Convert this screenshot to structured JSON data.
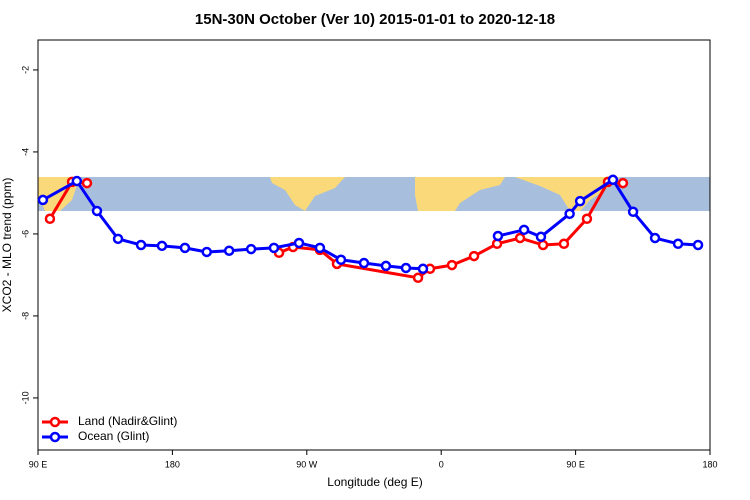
{
  "chart_data": {
    "type": "line",
    "title": "15N-30N October (Ver 10)   2015-01-01 to 2020-12-18",
    "x_label": "Longitude (deg E)",
    "y_label": "XCO2 - MLO trend (ppm)",
    "xlim": [
      90,
      540
    ],
    "ylim": [
      -11.27,
      -1.27
    ],
    "xticks": [
      {
        "value": 90,
        "label": "90 E"
      },
      {
        "value": 180,
        "label": "180"
      },
      {
        "value": 270,
        "label": "90 W"
      },
      {
        "value": 360,
        "label": "0"
      },
      {
        "value": 450,
        "label": "90 E"
      },
      {
        "value": 540,
        "label": "180"
      }
    ],
    "yticks": [
      -10,
      -8,
      -6,
      -4,
      -2
    ],
    "legend": "bottom-left",
    "series": [
      {
        "name": "Land (Nadir&Glint)",
        "color": "#ff0000",
        "x": [
          98,
          112.8,
          122.8,
          190,
          251.4,
          260.8,
          278.8,
          290.2,
          344.5,
          352.5,
          367.2,
          382,
          397.4,
          412.8,
          428.2,
          442.2,
          457.6,
          471.7,
          481.7
        ],
        "values": [
          -5.63,
          -4.73,
          -4.76,
          null,
          -6.46,
          -6.32,
          -6.39,
          -6.73,
          -7.07,
          -6.85,
          -6.76,
          -6.54,
          -6.24,
          -6.1,
          -6.27,
          -6.24,
          -5.63,
          -4.73,
          -4.76
        ]
      },
      {
        "name": "Ocean (Glint)",
        "color": "#0000ff",
        "x": [
          93.3,
          116,
          129.5,
          143.6,
          159,
          173,
          188.4,
          203,
          218,
          232.7,
          248,
          264.8,
          278.8,
          292.9,
          308.3,
          323,
          336.4,
          347.8,
          373,
          398,
          415.5,
          426.8,
          446,
          453,
          475,
          488.5,
          503.2,
          518.6,
          532
        ],
        "values": [
          -5.17,
          -4.71,
          -5.44,
          -6.12,
          -6.27,
          -6.29,
          -6.34,
          -6.44,
          -6.41,
          -6.37,
          -6.34,
          -6.22,
          -6.34,
          -6.63,
          -6.71,
          -6.78,
          -6.83,
          -6.85,
          null,
          -6.05,
          -5.9,
          -6.07,
          -5.51,
          -5.2,
          -4.68,
          -5.46,
          -6.1,
          -6.24,
          -6.27
        ]
      }
    ]
  }
}
